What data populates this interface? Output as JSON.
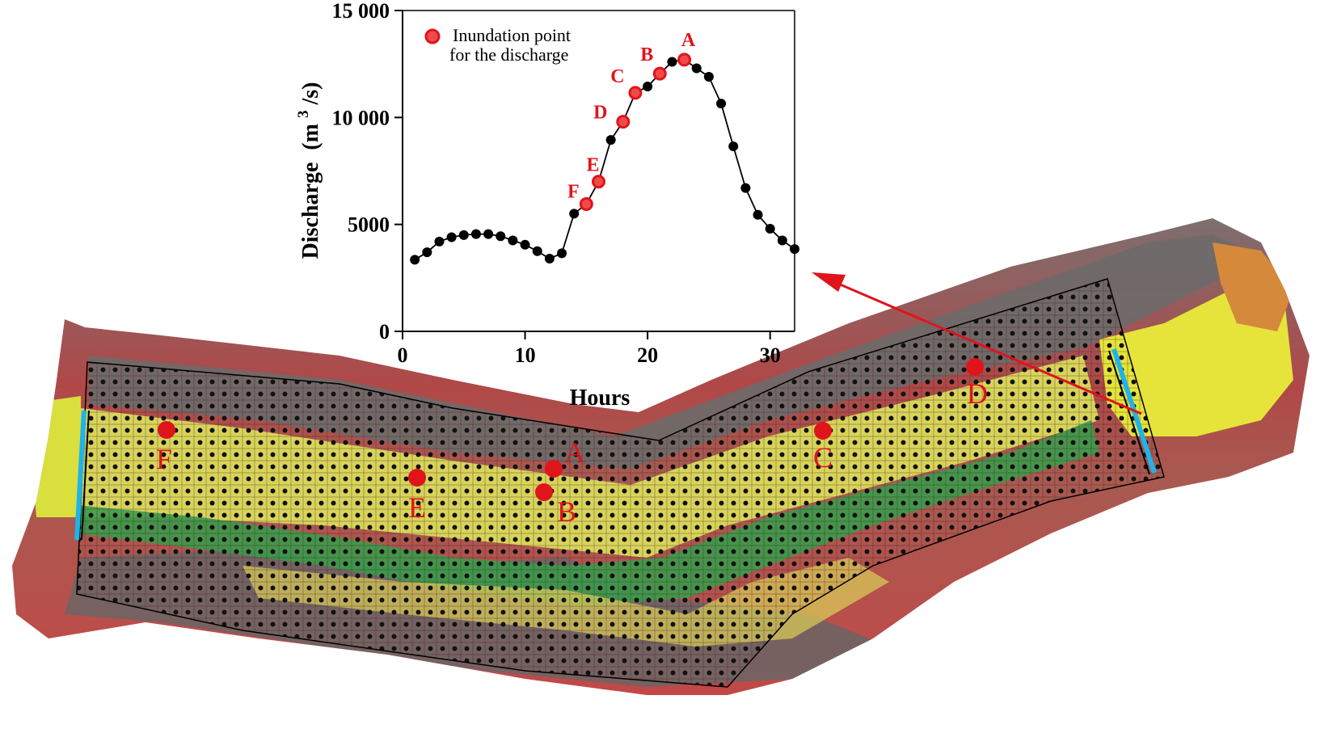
{
  "chart_data": {
    "type": "line",
    "xlabel": "Hours",
    "ylabel_main": "Discharge",
    "ylabel_unit_prefix": "(m",
    "ylabel_unit_sup": "3",
    "ylabel_unit_suffix": "/s)",
    "xlim": [
      0,
      32
    ],
    "ylim": [
      0,
      15000
    ],
    "x_ticks": [
      0,
      10,
      20,
      30
    ],
    "y_ticks": [
      0,
      5000,
      10000,
      15000
    ],
    "x_tick_labels": [
      "0",
      "10",
      "20",
      "30"
    ],
    "y_tick_labels": [
      "0",
      "5000",
      "10 000",
      "15 000"
    ],
    "grid": false,
    "legend": {
      "position": "top-left",
      "text_line1": "Inundation point",
      "text_line2": "for the discharge"
    },
    "series": [
      {
        "x": [
          1,
          2,
          3,
          4,
          5,
          6,
          7,
          8,
          9,
          10,
          11,
          12,
          13,
          14,
          15,
          16,
          17,
          18,
          19,
          20,
          21,
          22,
          23,
          24,
          25,
          26,
          27,
          28,
          29,
          30,
          31,
          32
        ],
        "y": [
          3350,
          3700,
          4200,
          4400,
          4500,
          4550,
          4550,
          4450,
          4250,
          4050,
          3750,
          3400,
          3650,
          5500,
          5950,
          7000,
          8950,
          9800,
          11150,
          11450,
          12050,
          12600,
          12700,
          12300,
          11900,
          10650,
          8650,
          6700,
          5450,
          4800,
          4250,
          3850
        ]
      }
    ],
    "highlighted_points": [
      {
        "label": "F",
        "x": 15,
        "y": 5950
      },
      {
        "label": "E",
        "x": 16,
        "y": 7000
      },
      {
        "label": "D",
        "x": 18,
        "y": 9800
      },
      {
        "label": "C",
        "x": 19,
        "y": 11150
      },
      {
        "label": "B",
        "x": 21,
        "y": 12050
      },
      {
        "label": "A",
        "x": 23,
        "y": 12700
      }
    ]
  },
  "map": {
    "point_labels": [
      "F",
      "E",
      "A",
      "B",
      "C",
      "D"
    ]
  },
  "colors": {
    "highlight": "#e0141b",
    "data_point": "#000000",
    "boundary": "#1fb4e8",
    "arrow": "#e0141b"
  }
}
